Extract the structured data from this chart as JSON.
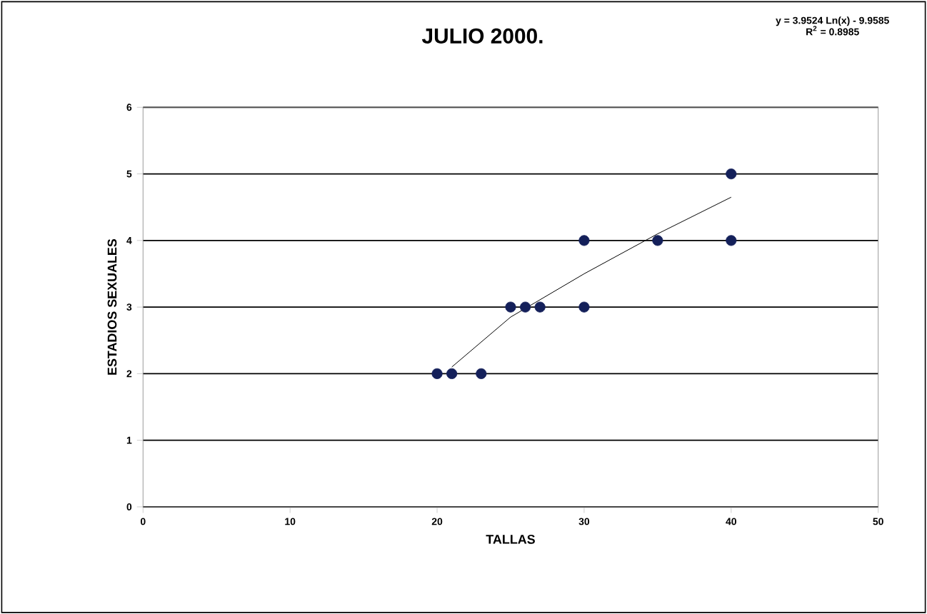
{
  "chart_data": {
    "type": "scatter",
    "title": "JULIO 2000.",
    "xlabel": "TALLAS",
    "ylabel": "ESTADIOS   SEXUALES",
    "annotations": [
      "y = 3.9524 Ln(x) - 9.9585",
      "R$^{2}$ = 0.8985"
    ],
    "series": [
      {
        "color": "#14205a",
        "marker": "circle",
        "x": [
          20,
          21,
          23,
          25,
          26,
          27,
          30,
          30,
          35,
          40,
          40
        ],
        "values": [
          2,
          2,
          2,
          3,
          3,
          3,
          3,
          4,
          4,
          4,
          5
        ]
      },
      {
        "type": "line",
        "color": "#000000",
        "marker": "none",
        "x": [
          21,
          25,
          30,
          35,
          40
        ],
        "values": [
          2.1,
          2.85,
          3.5,
          4.1,
          4.65
        ]
      }
    ],
    "xlim": [
      0,
      50
    ],
    "xticks": [
      0,
      10,
      20,
      30,
      40,
      50
    ],
    "ylim": [
      0,
      6
    ],
    "yticks": [
      0,
      1,
      2,
      3,
      4,
      5,
      6
    ],
    "grid": "y"
  }
}
